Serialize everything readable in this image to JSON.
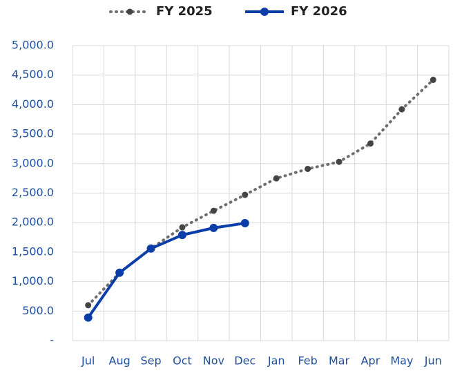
{
  "chart_data": {
    "type": "line",
    "categories": [
      "Jul",
      "Aug",
      "Sep",
      "Oct",
      "Nov",
      "Dec",
      "Jan",
      "Feb",
      "Mar",
      "Apr",
      "May",
      "Jun"
    ],
    "series": [
      {
        "name": "FY 2025",
        "color": "#6e6e6e",
        "dash": "dotted",
        "values": [
          600,
          1150,
          1560,
          1920,
          2200,
          2470,
          2750,
          2910,
          3030,
          3340,
          3920,
          4420
        ]
      },
      {
        "name": "FY 2026",
        "color": "#0b3ea8",
        "dash": "solid",
        "values": [
          390,
          1150,
          1560,
          1790,
          1910,
          1990,
          null,
          null,
          null,
          null,
          null,
          null
        ]
      }
    ],
    "ylim": [
      0,
      5000
    ],
    "yticks": [
      {
        "value": 0,
        "label": "-"
      },
      {
        "value": 500,
        "label": "500.0"
      },
      {
        "value": 1000,
        "label": "1,000.0"
      },
      {
        "value": 1500,
        "label": "1,500.0"
      },
      {
        "value": 2000,
        "label": "2,000.0"
      },
      {
        "value": 2500,
        "label": "2,500.0"
      },
      {
        "value": 3000,
        "label": "3,000.0"
      },
      {
        "value": 3500,
        "label": "3,500.0"
      },
      {
        "value": 4000,
        "label": "4,000.0"
      },
      {
        "value": 4500,
        "label": "4,500.0"
      },
      {
        "value": 5000,
        "label": "5,000.0"
      }
    ],
    "grid": true,
    "legend": "top"
  }
}
